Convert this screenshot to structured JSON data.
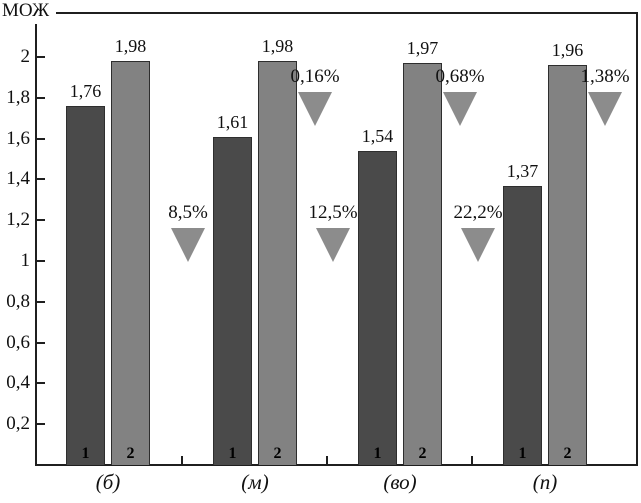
{
  "chart_data": {
    "type": "bar",
    "title": "",
    "ylabel": "МОЖ",
    "xlabel": "",
    "ylim": [
      0,
      2.22
    ],
    "grid": false,
    "legend_position": "none",
    "categories": [
      "(б)",
      "(м)",
      "(во)",
      "(п)"
    ],
    "series": [
      {
        "name": "1",
        "values": [
          1.76,
          1.61,
          1.54,
          1.37
        ],
        "value_labels": [
          "1,76",
          "1,61",
          "1,54",
          "1,37"
        ],
        "color": "#4a4a4a"
      },
      {
        "name": "2",
        "values": [
          1.98,
          1.98,
          1.97,
          1.96
        ],
        "value_labels": [
          "1,98",
          "1,98",
          "1,97",
          "1,96"
        ],
        "color": "#828282"
      }
    ],
    "y_ticks": [
      {
        "value": 2,
        "label": "2"
      },
      {
        "value": 1.8,
        "label": "1,8"
      },
      {
        "value": 1.6,
        "label": "1,6"
      },
      {
        "value": 1.4,
        "label": "1,4"
      },
      {
        "value": 1.2,
        "label": "1,2"
      },
      {
        "value": 1,
        "label": "1"
      },
      {
        "value": 0.8,
        "label": "0,8"
      },
      {
        "value": 0.6,
        "label": "0,6"
      },
      {
        "value": 0.4,
        "label": "0,4"
      },
      {
        "value": 0.2,
        "label": "0,2"
      }
    ],
    "annotations": [
      {
        "label": "8,5%",
        "row": "lower",
        "group_index": 1,
        "marker": "triangle-down"
      },
      {
        "label": "0,16%",
        "row": "upper",
        "group_index": 1,
        "marker": "triangle-down"
      },
      {
        "label": "12,5%",
        "row": "lower",
        "group_index": 2,
        "marker": "triangle-down"
      },
      {
        "label": "0,68%",
        "row": "upper",
        "group_index": 2,
        "marker": "triangle-down"
      },
      {
        "label": "22,2%",
        "row": "lower",
        "group_index": 3,
        "marker": "triangle-down"
      },
      {
        "label": "1,38%",
        "row": "upper",
        "group_index": 3,
        "marker": "triangle-down"
      }
    ],
    "marker_color": "#8c8c8c",
    "frame_color": "#1f1f1f",
    "background": "#ffffff"
  }
}
